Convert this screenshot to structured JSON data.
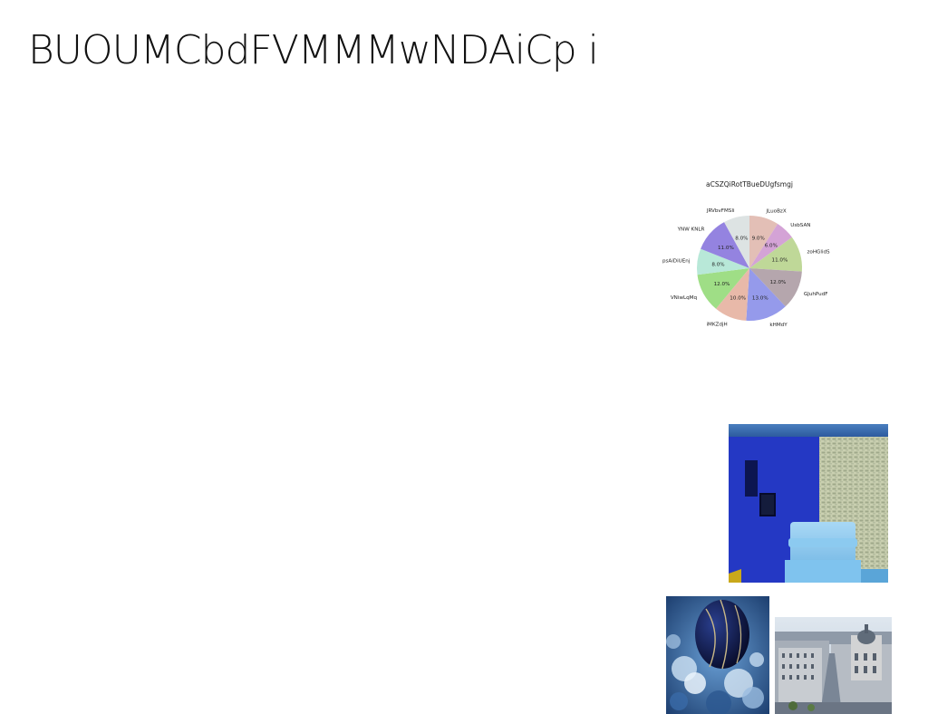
{
  "page": {
    "title": "BUOUMCbdFVMMMwNDAiCp i"
  },
  "images": {
    "blue_room": "photo of a blue room with a light-blue armchair",
    "ornament": "photo of a dark blue ornament among frosted foliage",
    "city": "aerial photo of a city street with ornate buildings"
  },
  "chart_data": {
    "type": "pie",
    "title": "aCSZQiRotTBueDUgfsmgj",
    "slices": [
      {
        "label": "JLuoBzX",
        "value": 9.0,
        "pct_label": "9.0%",
        "color": "#e3bfb6"
      },
      {
        "label": "UsbSAN",
        "value": 6.0,
        "pct_label": "6.0%",
        "color": "#d4a3d6"
      },
      {
        "label": "zoHGlidS",
        "value": 11.0,
        "pct_label": "11.0%",
        "color": "#bfd898"
      },
      {
        "label": "GJuhPudF",
        "value": 12.0,
        "pct_label": "12.0%",
        "color": "#b5a6ad"
      },
      {
        "label": "kHMdY",
        "value": 13.0,
        "pct_label": "13.0%",
        "color": "#959aeb"
      },
      {
        "label": "iMKZdjH",
        "value": 10.0,
        "pct_label": "10.0%",
        "color": "#e8b9a9"
      },
      {
        "label": "VNiwLqMq",
        "value": 12.0,
        "pct_label": "12.0%",
        "color": "#9fde86"
      },
      {
        "label": "psAiDiUEnj",
        "value": 8.0,
        "pct_label": "8.0%",
        "color": "#b8e8d8"
      },
      {
        "label": "YNW KNLR",
        "value": 11.0,
        "pct_label": "11.0%",
        "color": "#9483e0"
      },
      {
        "label": "JRVbvFMSIi",
        "value": 8.0,
        "pct_label": "8.0%",
        "color": "#dde3e3"
      }
    ],
    "start_angle_deg": 90,
    "direction": "clockwise"
  }
}
